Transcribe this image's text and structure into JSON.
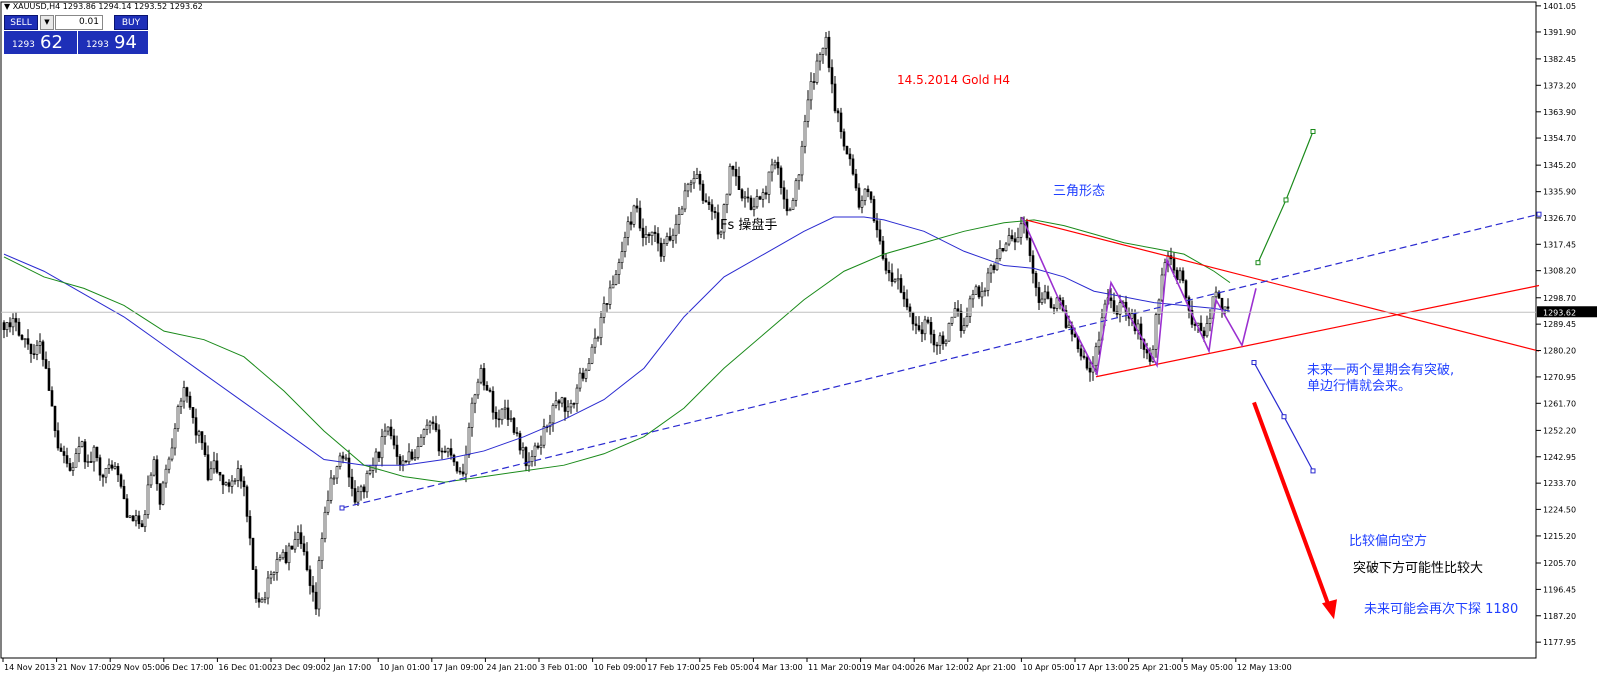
{
  "header": {
    "symbol_info": "XAUUSD,H4  1293.86 1294.14 1293.52 1293.62"
  },
  "trade_panel": {
    "sell_label": "SELL",
    "buy_label": "BUY",
    "lot_value": "0.01",
    "sell_price_small": "1293",
    "sell_price_big": "62",
    "buy_price_small": "1293",
    "buy_price_big": "94"
  },
  "annotations": {
    "title": "14.5.2014 Gold H4",
    "watermark": "Fs 操盘手",
    "triangle_label": "三角形态",
    "breakout_note_1": "未来一两个星期会有突破,",
    "breakout_note_2": "单边行情就会来。",
    "bias_note": "比较偏向空方",
    "downside_note": "突破下方可能性比较大",
    "target_note": "未来可能会再次下探  1180"
  },
  "colors": {
    "candle": "#000000",
    "ma_blue": "#2a2ad0",
    "ma_green": "#1a8a1a",
    "trend_red": "#ff0000",
    "pattern_purple": "#9b30d0",
    "note_blue": "#1f3fff",
    "price_tag_bg": "#000000"
  },
  "chart_data": {
    "type": "candlestick",
    "symbol": "XAUUSD",
    "timeframe": "H4",
    "current_price": "1293.62",
    "ylim": [
      1174.5,
      1401.0
    ],
    "y_ticks": [
      "1401.05",
      "1391.90",
      "1382.45",
      "1373.20",
      "1363.90",
      "1354.70",
      "1345.20",
      "1335.90",
      "1326.70",
      "1317.45",
      "1308.20",
      "1298.70",
      "1289.45",
      "1280.20",
      "1270.95",
      "1261.70",
      "1252.20",
      "1242.95",
      "1233.70",
      "1224.50",
      "1215.20",
      "1205.70",
      "1196.45",
      "1187.20",
      "1177.95"
    ],
    "x_ticks": [
      "14 Nov 2013",
      "21 Nov 17:00",
      "29 Nov 05:00",
      "6 Dec 17:00",
      "16 Dec 01:00",
      "23 Dec 09:00",
      "2 Jan 17:00",
      "10 Jan 01:00",
      "17 Jan 09:00",
      "24 Jan 21:00",
      "3 Feb 01:00",
      "10 Feb 09:00",
      "17 Feb 17:00",
      "25 Feb 05:00",
      "4 Mar 13:00",
      "11 Mar 20:00",
      "19 Mar 04:00",
      "26 Mar 12:00",
      "2 Apr 21:00",
      "10 Apr 05:00",
      "17 Apr 13:00",
      "25 Apr 21:00",
      "5 May 05:00",
      "12 May 13:00"
    ],
    "price_path": [
      [
        0,
        1290
      ],
      [
        6,
        1287
      ],
      [
        12,
        1292
      ],
      [
        18,
        1284
      ],
      [
        24,
        1283
      ],
      [
        30,
        1279
      ],
      [
        36,
        1282
      ],
      [
        42,
        1275
      ],
      [
        48,
        1260
      ],
      [
        54,
        1248
      ],
      [
        60,
        1244
      ],
      [
        66,
        1238
      ],
      [
        72,
        1243
      ],
      [
        78,
        1246
      ],
      [
        84,
        1240
      ],
      [
        90,
        1244
      ],
      [
        96,
        1239
      ],
      [
        102,
        1237
      ],
      [
        108,
        1241
      ],
      [
        114,
        1236
      ],
      [
        120,
        1228
      ],
      [
        126,
        1220
      ],
      [
        132,
        1222
      ],
      [
        138,
        1216
      ],
      [
        144,
        1232
      ],
      [
        150,
        1240
      ],
      [
        156,
        1228
      ],
      [
        162,
        1238
      ],
      [
        168,
        1248
      ],
      [
        174,
        1262
      ],
      [
        180,
        1265
      ],
      [
        186,
        1260
      ],
      [
        192,
        1252
      ],
      [
        198,
        1248
      ],
      [
        204,
        1235
      ],
      [
        210,
        1240
      ],
      [
        216,
        1236
      ],
      [
        222,
        1232
      ],
      [
        228,
        1235
      ],
      [
        234,
        1238
      ],
      [
        240,
        1230
      ],
      [
        246,
        1212
      ],
      [
        252,
        1195
      ],
      [
        258,
        1193
      ],
      [
        264,
        1198
      ],
      [
        270,
        1204
      ],
      [
        276,
        1209
      ],
      [
        282,
        1207
      ],
      [
        288,
        1212
      ],
      [
        294,
        1214
      ],
      [
        300,
        1208
      ],
      [
        306,
        1196
      ],
      [
        312,
        1190
      ],
      [
        316,
        1209
      ],
      [
        320,
        1222
      ],
      [
        326,
        1232
      ],
      [
        332,
        1238
      ],
      [
        338,
        1244
      ],
      [
        344,
        1240
      ],
      [
        350,
        1228
      ],
      [
        356,
        1230
      ],
      [
        362,
        1234
      ],
      [
        368,
        1240
      ],
      [
        374,
        1244
      ],
      [
        380,
        1250
      ],
      [
        386,
        1252
      ],
      [
        392,
        1246
      ],
      [
        398,
        1240
      ],
      [
        404,
        1244
      ],
      [
        410,
        1240
      ],
      [
        416,
        1248
      ],
      [
        422,
        1252
      ],
      [
        428,
        1254
      ],
      [
        434,
        1248
      ],
      [
        440,
        1244
      ],
      [
        446,
        1246
      ],
      [
        452,
        1240
      ],
      [
        458,
        1236
      ],
      [
        464,
        1250
      ],
      [
        470,
        1264
      ],
      [
        476,
        1274
      ],
      [
        482,
        1268
      ],
      [
        488,
        1262
      ],
      [
        494,
        1254
      ],
      [
        500,
        1262
      ],
      [
        506,
        1256
      ],
      [
        512,
        1252
      ],
      [
        518,
        1245
      ],
      [
        524,
        1240
      ],
      [
        530,
        1244
      ],
      [
        536,
        1248
      ],
      [
        542,
        1254
      ],
      [
        548,
        1258
      ],
      [
        554,
        1264
      ],
      [
        560,
        1261
      ],
      [
        566,
        1258
      ],
      [
        572,
        1266
      ],
      [
        578,
        1272
      ],
      [
        584,
        1276
      ],
      [
        590,
        1281
      ],
      [
        596,
        1290
      ],
      [
        602,
        1298
      ],
      [
        608,
        1302
      ],
      [
        614,
        1310
      ],
      [
        620,
        1318
      ],
      [
        626,
        1326
      ],
      [
        632,
        1330
      ],
      [
        638,
        1320
      ],
      [
        644,
        1318
      ],
      [
        650,
        1322
      ],
      [
        656,
        1313
      ],
      [
        662,
        1318
      ],
      [
        668,
        1320
      ],
      [
        674,
        1327
      ],
      [
        680,
        1334
      ],
      [
        686,
        1340
      ],
      [
        692,
        1342
      ],
      [
        698,
        1334
      ],
      [
        704,
        1332
      ],
      [
        710,
        1328
      ],
      [
        716,
        1320
      ],
      [
        722,
        1334
      ],
      [
        728,
        1347
      ],
      [
        734,
        1340
      ],
      [
        740,
        1334
      ],
      [
        746,
        1330
      ],
      [
        752,
        1334
      ],
      [
        758,
        1332
      ],
      [
        764,
        1340
      ],
      [
        770,
        1346
      ],
      [
        776,
        1340
      ],
      [
        782,
        1328
      ],
      [
        788,
        1334
      ],
      [
        794,
        1340
      ],
      [
        800,
        1356
      ],
      [
        806,
        1372
      ],
      [
        812,
        1378
      ],
      [
        818,
        1386
      ],
      [
        822,
        1392
      ],
      [
        826,
        1378
      ],
      [
        832,
        1364
      ],
      [
        838,
        1356
      ],
      [
        844,
        1350
      ],
      [
        850,
        1340
      ],
      [
        856,
        1330
      ],
      [
        862,
        1336
      ],
      [
        868,
        1330
      ],
      [
        874,
        1322
      ],
      [
        880,
        1312
      ],
      [
        886,
        1304
      ],
      [
        892,
        1306
      ],
      [
        898,
        1299
      ],
      [
        904,
        1295
      ],
      [
        910,
        1290
      ],
      [
        916,
        1287
      ],
      [
        922,
        1290
      ],
      [
        928,
        1285
      ],
      [
        934,
        1283
      ],
      [
        940,
        1284
      ],
      [
        946,
        1288
      ],
      [
        952,
        1294
      ],
      [
        958,
        1288
      ],
      [
        964,
        1295
      ],
      [
        970,
        1302
      ],
      [
        976,
        1300
      ],
      [
        982,
        1304
      ],
      [
        988,
        1310
      ],
      [
        994,
        1312
      ],
      [
        1000,
        1318
      ],
      [
        1006,
        1322
      ],
      [
        1012,
        1318
      ],
      [
        1018,
        1326
      ],
      [
        1022,
        1322
      ],
      [
        1026,
        1312
      ],
      [
        1030,
        1304
      ],
      [
        1036,
        1298
      ],
      [
        1042,
        1302
      ],
      [
        1048,
        1296
      ],
      [
        1054,
        1298
      ],
      [
        1060,
        1292
      ],
      [
        1066,
        1288
      ],
      [
        1072,
        1284
      ],
      [
        1078,
        1280
      ],
      [
        1084,
        1275
      ],
      [
        1088,
        1272
      ],
      [
        1094,
        1284
      ],
      [
        1100,
        1296
      ],
      [
        1106,
        1300
      ],
      [
        1112,
        1294
      ],
      [
        1118,
        1298
      ],
      [
        1124,
        1292
      ],
      [
        1130,
        1290
      ],
      [
        1136,
        1286
      ],
      [
        1142,
        1280
      ],
      [
        1148,
        1276
      ],
      [
        1154,
        1298
      ],
      [
        1160,
        1312
      ],
      [
        1166,
        1311
      ],
      [
        1172,
        1306
      ],
      [
        1178,
        1309
      ],
      [
        1184,
        1294
      ],
      [
        1190,
        1288
      ],
      [
        1196,
        1290
      ],
      [
        1202,
        1286
      ],
      [
        1208,
        1297
      ],
      [
        1214,
        1300
      ],
      [
        1220,
        1294
      ],
      [
        1226,
        1292
      ]
    ],
    "series": [
      {
        "name": "",
        "color": "#2a2ad0",
        "points": [
          [
            0,
            1314
          ],
          [
            40,
            1308
          ],
          [
            80,
            1300
          ],
          [
            120,
            1292
          ],
          [
            160,
            1282
          ],
          [
            200,
            1272
          ],
          [
            240,
            1262
          ],
          [
            280,
            1252
          ],
          [
            320,
            1242
          ],
          [
            360,
            1240
          ],
          [
            400,
            1240
          ],
          [
            440,
            1242
          ],
          [
            480,
            1245
          ],
          [
            520,
            1250
          ],
          [
            560,
            1256
          ],
          [
            600,
            1263
          ],
          [
            640,
            1274
          ],
          [
            680,
            1292
          ],
          [
            720,
            1306
          ],
          [
            760,
            1314
          ],
          [
            800,
            1322
          ],
          [
            830,
            1327
          ],
          [
            860,
            1327
          ],
          [
            880,
            1326
          ],
          [
            920,
            1322
          ],
          [
            960,
            1315
          ],
          [
            1000,
            1310
          ],
          [
            1030,
            1309
          ],
          [
            1060,
            1306
          ],
          [
            1090,
            1301
          ],
          [
            1120,
            1299
          ],
          [
            1150,
            1297
          ],
          [
            1180,
            1296
          ],
          [
            1210,
            1295
          ],
          [
            1226,
            1294
          ]
        ]
      },
      {
        "name": "",
        "color": "#1a8a1a",
        "points": [
          [
            0,
            1313
          ],
          [
            40,
            1306
          ],
          [
            80,
            1302
          ],
          [
            120,
            1296
          ],
          [
            160,
            1287
          ],
          [
            200,
            1284
          ],
          [
            240,
            1278
          ],
          [
            280,
            1266
          ],
          [
            320,
            1252
          ],
          [
            360,
            1240
          ],
          [
            400,
            1236
          ],
          [
            440,
            1234
          ],
          [
            480,
            1236
          ],
          [
            520,
            1238
          ],
          [
            560,
            1240
          ],
          [
            600,
            1244
          ],
          [
            640,
            1250
          ],
          [
            680,
            1260
          ],
          [
            720,
            1274
          ],
          [
            760,
            1286
          ],
          [
            800,
            1298
          ],
          [
            840,
            1308
          ],
          [
            880,
            1314
          ],
          [
            920,
            1318
          ],
          [
            960,
            1322
          ],
          [
            1000,
            1325
          ],
          [
            1030,
            1326
          ],
          [
            1060,
            1324
          ],
          [
            1090,
            1321
          ],
          [
            1120,
            1318
          ],
          [
            1150,
            1316
          ],
          [
            1180,
            1314
          ],
          [
            1210,
            1308
          ],
          [
            1226,
            1304
          ]
        ]
      }
    ],
    "trendlines": [
      {
        "color": "#ff0000",
        "style": "solid",
        "points": [
          [
            1022,
            1326
          ],
          [
            1535,
            1280
          ]
        ]
      },
      {
        "color": "#ff0000",
        "style": "solid",
        "points": [
          [
            1092,
            1271
          ],
          [
            1535,
            1303
          ]
        ]
      },
      {
        "color": "#2a2ad0",
        "style": "dashed",
        "points": [
          [
            338,
            1225
          ],
          [
            1535,
            1328
          ]
        ]
      },
      {
        "color": "#9b30d0",
        "style": "solid",
        "points": [
          [
            1018,
            1327
          ],
          [
            1055,
            1298
          ],
          [
            1093,
            1272
          ],
          [
            1107,
            1304
          ],
          [
            1153,
            1275
          ],
          [
            1163,
            1312
          ],
          [
            1205,
            1280
          ],
          [
            1212,
            1298
          ],
          [
            1238,
            1282
          ],
          [
            1252,
            1302
          ]
        ]
      },
      {
        "color": "#1a8a1a",
        "style": "solid",
        "points": [
          [
            1254,
            1311
          ],
          [
            1282,
            1333
          ],
          [
            1309,
            1357
          ]
        ]
      },
      {
        "color": "#2a2ad0",
        "style": "solid",
        "points": [
          [
            1250,
            1276
          ],
          [
            1280,
            1257
          ],
          [
            1309,
            1238
          ]
        ]
      }
    ],
    "arrow": {
      "color": "#ff0000",
      "from": [
        1250,
        1262
      ],
      "to": [
        1330,
        1186
      ]
    }
  }
}
